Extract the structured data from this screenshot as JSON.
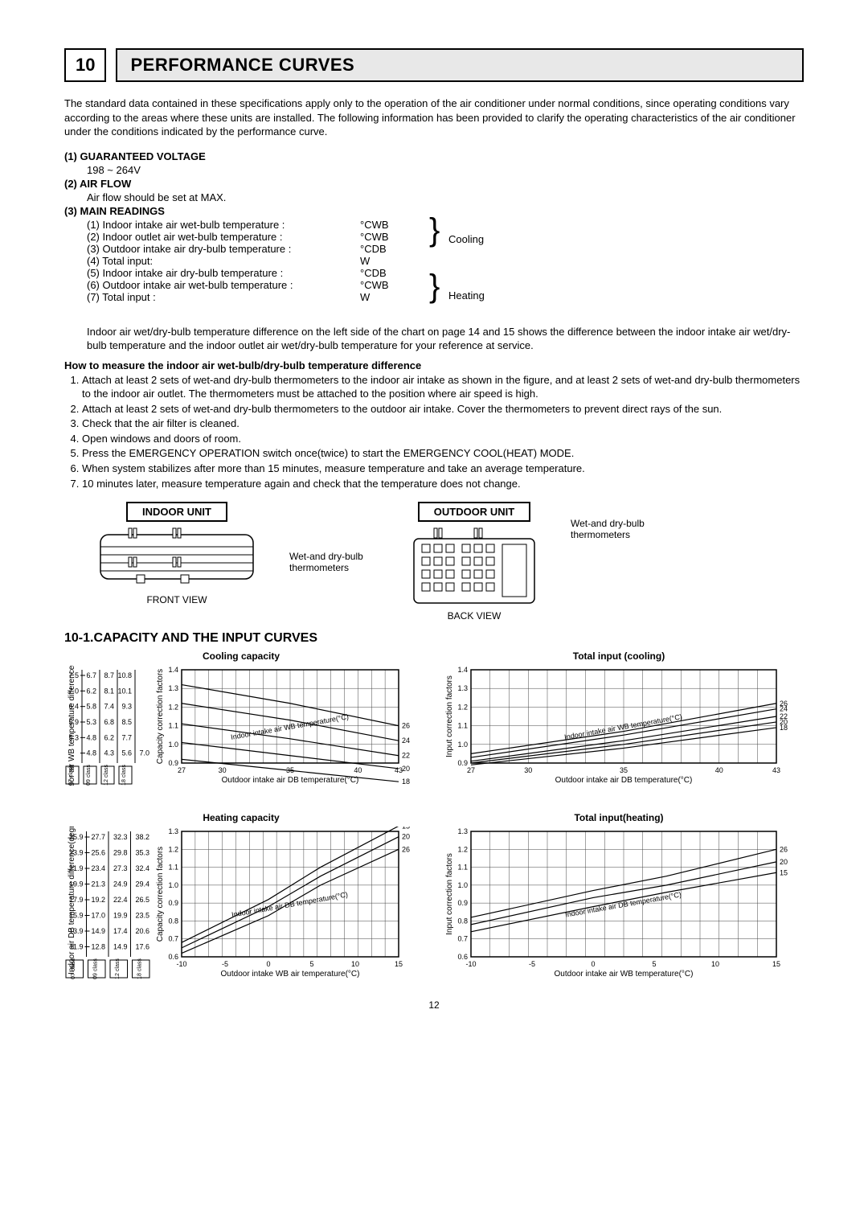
{
  "section": {
    "number": "10",
    "title": "PERFORMANCE CURVES"
  },
  "intro": "The standard data contained in these specifications apply only to the operation of the air conditioner under normal conditions, since operating conditions vary according to the areas where these units are installed. The following information has been provided to clarify the operating characteristics of the air conditioner under the conditions indicated by the performance curve.",
  "subs": {
    "s1_title": "(1) GUARANTEED VOLTAGE",
    "s1_val": "198 ~ 264V",
    "s2_title": "(2) AIR FLOW",
    "s2_val": "Air flow should be set at MAX.",
    "s3_title": "(3) MAIN READINGS"
  },
  "readings": {
    "cooling_label": "Cooling",
    "heating_label": "Heating",
    "rows": [
      {
        "l": "(1) Indoor intake air wet-bulb temperature :",
        "u": "°CWB"
      },
      {
        "l": "(2) Indoor outlet air wet-bulb temperature :",
        "u": "°CWB"
      },
      {
        "l": "(3) Outdoor intake air dry-bulb temperature :",
        "u": "°CDB"
      },
      {
        "l": "(4) Total input:",
        "u": "W"
      },
      {
        "l": "(5) Indoor intake air dry-bulb temperature :",
        "u": "°CDB"
      },
      {
        "l": "(6) Outdoor intake air wet-bulb temperature :",
        "u": "°CWB"
      },
      {
        "l": "(7) Total input :",
        "u": "W"
      }
    ],
    "note": "Indoor air wet/dry-bulb temperature difference on the left side of the chart on page 14 and 15 shows the difference between the indoor intake air wet/dry-bulb temperature and the indoor outlet air wet/dry-bulb temperature for your reference at service."
  },
  "howto": {
    "title": "How to measure the indoor air wet-bulb/dry-bulb temperature difference",
    "steps": [
      "Attach at least 2 sets of wet-and dry-bulb thermometers to the indoor air intake as shown in the figure, and at least 2 sets of wet-and dry-bulb thermometers to the indoor air outlet. The thermometers must be attached to the position where air speed is high.",
      "Attach at least 2 sets of wet-and dry-bulb thermometers to the outdoor air intake. Cover the thermometers to prevent direct rays of the sun.",
      "Check that the air filter is cleaned.",
      "Open windows and doors of room.",
      "Press the EMERGENCY OPERATION switch once(twice) to start the EMERGENCY COOL(HEAT) MODE.",
      "When system stabilizes after more than 15 minutes, measure temperature and take an average temperature.",
      "10 minutes later, measure temperature again and check that the temperature does not change."
    ]
  },
  "units": {
    "indoor_title": "INDOOR UNIT",
    "outdoor_title": "OUTDOOR UNIT",
    "front_view": "FRONT VIEW",
    "back_view": "BACK VIEW",
    "thermo_label": "Wet-and dry-bulb thermometers"
  },
  "charts_section_title": "10-1.CAPACITY AND THE INPUT CURVES",
  "page_number": "12",
  "class_labels": [
    "07 class",
    "09 class",
    "12 class",
    "18 class"
  ],
  "charts": {
    "cooling_capacity": {
      "title": "Cooling capacity",
      "x_label": "Outdoor intake air DB temperature(°C)",
      "y_label_left": "Indoor air WB temperature difference(degree)",
      "y_label_right": "Capacity correction factors",
      "x_min": 27,
      "x_max": 43,
      "x_ticks": [
        27,
        30,
        35,
        40,
        43
      ],
      "y_min": 0.9,
      "y_max": 1.4,
      "y_ticks": [
        0.9,
        1.0,
        1.1,
        1.2,
        1.3,
        1.4
      ],
      "diag_label": "Indoor intake air WB temperature(°C)",
      "series_right_labels": [
        "26",
        "24",
        "22",
        "20",
        "18"
      ],
      "series": [
        {
          "name": "26",
          "pts": [
            [
              27,
              1.32
            ],
            [
              35,
              1.22
            ],
            [
              43,
              1.1
            ]
          ]
        },
        {
          "name": "24",
          "pts": [
            [
              27,
              1.22
            ],
            [
              35,
              1.13
            ],
            [
              43,
              1.02
            ]
          ]
        },
        {
          "name": "22",
          "pts": [
            [
              27,
              1.11
            ],
            [
              35,
              1.03
            ],
            [
              43,
              0.94
            ]
          ]
        },
        {
          "name": "20",
          "pts": [
            [
              27,
              1.01
            ],
            [
              35,
              0.94
            ],
            [
              43,
              0.87
            ]
          ]
        },
        {
          "name": "18",
          "pts": [
            [
              27,
              0.92
            ],
            [
              35,
              0.86
            ],
            [
              43,
              0.8
            ]
          ]
        }
      ],
      "side_table": {
        "rows": [
          "7.5",
          "7.0",
          "6.4",
          "5.9",
          "5.3",
          ""
        ],
        "cols": [
          [
            "6.7",
            "6.2",
            "5.8",
            "5.3",
            "4.8",
            "4.8"
          ],
          [
            "8.7",
            "8.1",
            "7.4",
            "6.8",
            "6.2",
            "4.3"
          ],
          [
            "10.8",
            "10.1",
            "9.3",
            "8.5",
            "7.7",
            "5.6"
          ],
          [
            "",
            "",
            "",
            "",
            "",
            "7.0"
          ]
        ]
      }
    },
    "cooling_input": {
      "title": "Total input (cooling)",
      "x_label": "Outdoor intake air DB temperature(°C)",
      "y_label": "Input correction factors",
      "x_min": 27,
      "x_max": 43,
      "x_ticks": [
        27,
        30,
        35,
        40,
        43
      ],
      "y_min": 0.9,
      "y_max": 1.4,
      "y_ticks": [
        0.9,
        1.0,
        1.1,
        1.2,
        1.3,
        1.4
      ],
      "diag_label": "Indoor intake air WB temperature(°C)",
      "series_right_labels": [
        "26",
        "24",
        "22",
        "20",
        "18"
      ],
      "series": [
        {
          "name": "26",
          "pts": [
            [
              27,
              0.95
            ],
            [
              35,
              1.07
            ],
            [
              43,
              1.22
            ]
          ]
        },
        {
          "name": "24",
          "pts": [
            [
              27,
              0.93
            ],
            [
              35,
              1.05
            ],
            [
              43,
              1.19
            ]
          ]
        },
        {
          "name": "22",
          "pts": [
            [
              27,
              0.91
            ],
            [
              35,
              1.02
            ],
            [
              43,
              1.15
            ]
          ]
        },
        {
          "name": "20",
          "pts": [
            [
              27,
              0.9
            ],
            [
              35,
              1.0
            ],
            [
              43,
              1.12
            ]
          ]
        },
        {
          "name": "18",
          "pts": [
            [
              27,
              0.89
            ],
            [
              35,
              0.98
            ],
            [
              43,
              1.09
            ]
          ]
        }
      ]
    },
    "heating_capacity": {
      "title": "Heating capacity",
      "x_label": "Outdoor intake WB air temperature(°C)",
      "y_label_left": "Indoor air DB temperature difference(degree)",
      "y_label_right": "Capacity correction factors",
      "x_min": -10,
      "x_max": 15,
      "x_ticks": [
        -10,
        -5,
        0,
        5,
        10,
        15
      ],
      "y_min": 0.6,
      "y_max": 1.3,
      "y_ticks": [
        0.6,
        0.7,
        0.8,
        0.9,
        1.0,
        1.1,
        1.2,
        1.3
      ],
      "diag_label": "Indoor intake air DB temperature(°C)",
      "series_right_labels": [
        "15",
        "20",
        "26"
      ],
      "series": [
        {
          "name": "15",
          "pts": [
            [
              -10,
              0.68
            ],
            [
              0,
              0.92
            ],
            [
              6,
              1.1
            ],
            [
              15,
              1.33
            ]
          ]
        },
        {
          "name": "20",
          "pts": [
            [
              -10,
              0.65
            ],
            [
              0,
              0.88
            ],
            [
              6,
              1.05
            ],
            [
              15,
              1.27
            ]
          ]
        },
        {
          "name": "26",
          "pts": [
            [
              -10,
              0.62
            ],
            [
              0,
              0.83
            ],
            [
              6,
              1.0
            ],
            [
              15,
              1.2
            ]
          ]
        }
      ],
      "side_table": {
        "rows": [
          "25.9",
          "23.9",
          "21.9",
          "19.9",
          "17.9",
          "15.9",
          "13.9",
          "11.9"
        ],
        "cols": [
          [
            "27.7",
            "25.6",
            "23.4",
            "21.3",
            "19.2",
            "17.0",
            "14.9",
            "12.8"
          ],
          [
            "32.3",
            "29.8",
            "27.3",
            "24.9",
            "22.4",
            "19.9",
            "17.4",
            "14.9"
          ],
          [
            "38.2",
            "35.3",
            "32.4",
            "29.4",
            "26.5",
            "23.5",
            "20.6",
            "17.6"
          ]
        ]
      }
    },
    "heating_input": {
      "title": "Total input(heating)",
      "x_label": "Outdoor intake air WB temperature(°C)",
      "y_label": "Input correction factors",
      "x_min": -10,
      "x_max": 15,
      "x_ticks": [
        -10,
        -5,
        0,
        5,
        10,
        15
      ],
      "y_min": 0.6,
      "y_max": 1.3,
      "y_ticks": [
        0.6,
        0.7,
        0.8,
        0.9,
        1.0,
        1.1,
        1.2,
        1.3
      ],
      "diag_label": "Indoor intake air DB temperature(°C)",
      "series_right_labels": [
        "26",
        "20",
        "15"
      ],
      "series": [
        {
          "name": "26",
          "pts": [
            [
              -10,
              0.82
            ],
            [
              0,
              0.97
            ],
            [
              6,
              1.05
            ],
            [
              15,
              1.2
            ]
          ]
        },
        {
          "name": "20",
          "pts": [
            [
              -10,
              0.78
            ],
            [
              0,
              0.93
            ],
            [
              6,
              1.0
            ],
            [
              15,
              1.13
            ]
          ]
        },
        {
          "name": "15",
          "pts": [
            [
              -10,
              0.74
            ],
            [
              0,
              0.88
            ],
            [
              6,
              0.96
            ],
            [
              15,
              1.07
            ]
          ]
        }
      ]
    }
  }
}
